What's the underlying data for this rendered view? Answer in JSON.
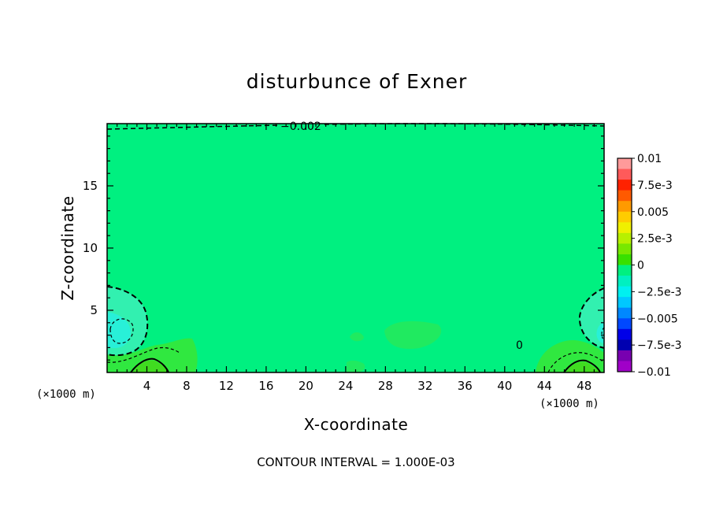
{
  "chart_data": {
    "type": "heatmap",
    "title": "disturbunce of Exner",
    "xlabel": "X-coordinate",
    "ylabel": "Z-coordinate",
    "x_unit": "(×1000 m)",
    "x_unit_right": "(×1000 m)",
    "xlim": [
      0,
      50
    ],
    "ylim": [
      0,
      20
    ],
    "x_ticks": [
      4,
      8,
      12,
      16,
      20,
      24,
      28,
      32,
      36,
      40,
      44,
      48
    ],
    "x_tick_labels": [
      "4",
      "8",
      "12",
      "16",
      "20",
      "24",
      "28",
      "32",
      "36",
      "40",
      "44",
      "48"
    ],
    "y_ticks": [
      5,
      10,
      15
    ],
    "y_tick_labels": [
      "5",
      "10",
      "15"
    ],
    "colorbar": {
      "range": [
        -0.01,
        0.01
      ],
      "labels": [
        "0.01",
        "7.5e-3",
        "0.005",
        "2.5e-3",
        "0",
        "−2.5e-3",
        "−0.005",
        "−7.5e-3",
        "−0.01"
      ],
      "colors_top_to_bottom": [
        "#ff9a9a",
        "#ff5a5a",
        "#ff2200",
        "#ff5a00",
        "#ff9a00",
        "#ffcc00",
        "#f0f000",
        "#b8f000",
        "#78e800",
        "#38e000",
        "#00f080",
        "#00f0c0",
        "#00f0f0",
        "#00c8ff",
        "#0088ff",
        "#0048ff",
        "#0000e8",
        "#0000b0",
        "#7800b0",
        "#a000c8"
      ]
    },
    "background_level": "#00f080",
    "contour_labels": [
      "−0.002",
      "0"
    ],
    "contour_interval_text": "CONTOUR INTERVAL = 1.000E-03",
    "grid": false,
    "legend": "colorbar-right"
  }
}
